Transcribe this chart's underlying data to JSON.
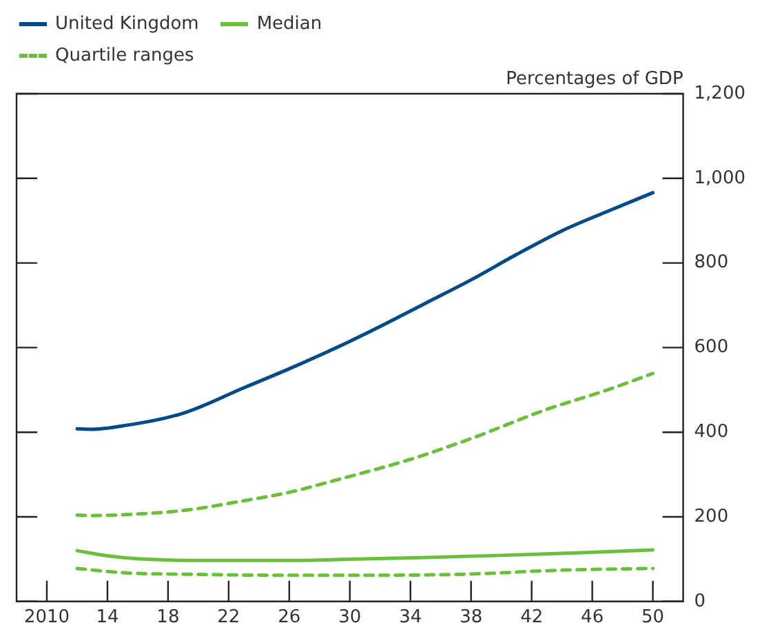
{
  "chart_data": {
    "type": "line",
    "ylabel": "Percentages of GDP",
    "xlim": [
      2008,
      2052
    ],
    "xticks": [
      {
        "value": 2010,
        "label": "2010"
      },
      {
        "value": 2014,
        "label": "14"
      },
      {
        "value": 2018,
        "label": "18"
      },
      {
        "value": 2022,
        "label": "22"
      },
      {
        "value": 2026,
        "label": "26"
      },
      {
        "value": 2030,
        "label": "30"
      },
      {
        "value": 2034,
        "label": "34"
      },
      {
        "value": 2038,
        "label": "38"
      },
      {
        "value": 2042,
        "label": "42"
      },
      {
        "value": 2046,
        "label": "46"
      },
      {
        "value": 2050,
        "label": "50"
      }
    ],
    "ylim": [
      0,
      1200
    ],
    "yticks": [
      0,
      200,
      400,
      600,
      800,
      {
        "value": 1000,
        "label": "1,000"
      },
      {
        "value": 1200,
        "label": "1,200"
      }
    ],
    "grid": false,
    "legend": "top left",
    "marker": "none",
    "series": [
      {
        "name": "United Kingdom",
        "color": "#004b87",
        "line_style": "solid",
        "x": [
          2012,
          2013,
          2015,
          2019,
          2023,
          2026,
          2029,
          2032,
          2035,
          2038,
          2041,
          2044,
          2047,
          2050
        ],
        "values": [
          408,
          407,
          415,
          445,
          505,
          550,
          598,
          650,
          705,
          760,
          820,
          876,
          922,
          966
        ]
      },
      {
        "name": "Median",
        "color": "#6cbf3c",
        "line_style": "solid",
        "x": [
          2012,
          2014,
          2016,
          2020,
          2026,
          2030,
          2035,
          2040,
          2045,
          2050
        ],
        "values": [
          120,
          108,
          101,
          97,
          97,
          100,
          104,
          109,
          115,
          122
        ]
      },
      {
        "name": "Quartile ranges",
        "color": "#6cbf3c",
        "line_style": "dashed",
        "x": [
          2012,
          2013,
          2015,
          2019,
          2023,
          2026,
          2029,
          2034,
          2038,
          2043,
          2047,
          2050
        ],
        "values": [
          204,
          203,
          205,
          215,
          238,
          258,
          286,
          336,
          385,
          454,
          500,
          539
        ]
      },
      {
        "color": "#6cbf3c",
        "line_style": "dashed",
        "x": [
          2012,
          2015,
          2020,
          2026,
          2032,
          2038,
          2044,
          2050
        ],
        "values": [
          78,
          68,
          64,
          62,
          62,
          65,
          74,
          78
        ]
      }
    ]
  }
}
